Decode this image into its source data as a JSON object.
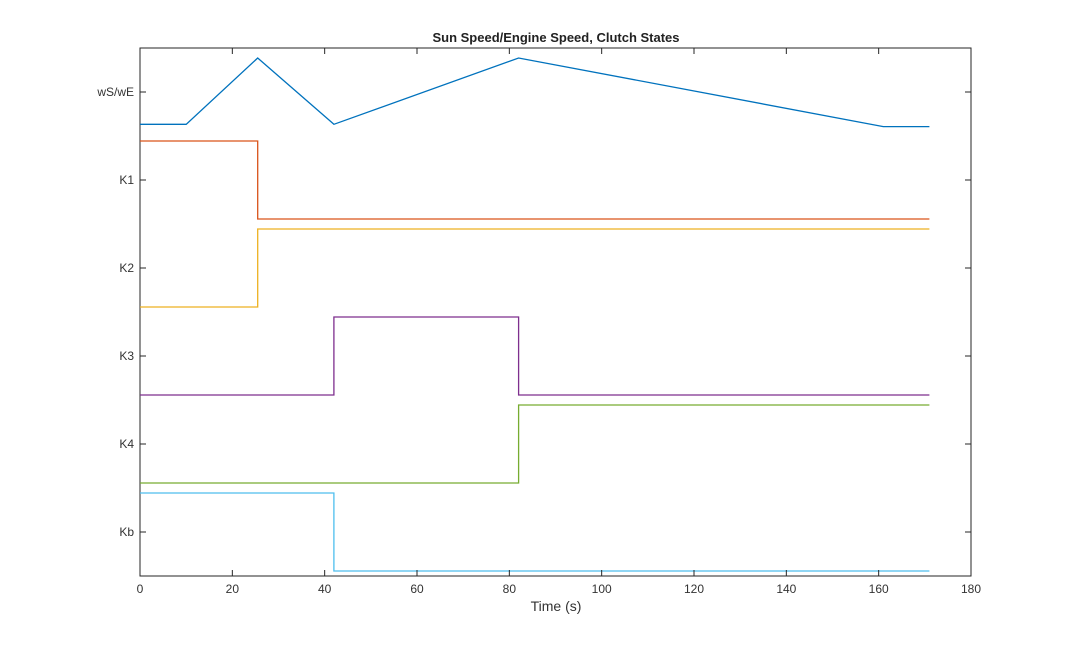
{
  "chart_data": {
    "type": "line",
    "title": "Sun Speed/Engine Speed, Clutch States",
    "xlabel": "Time (s)",
    "ylabel": "",
    "xlim": [
      0,
      180
    ],
    "xticks": [
      "0",
      "20",
      "40",
      "60",
      "80",
      "100",
      "120",
      "140",
      "160",
      "180"
    ],
    "ytick_labels": [
      "wS/wE",
      "K1",
      "K2",
      "K3",
      "K4",
      "Kb"
    ],
    "grid": false,
    "legend": "none",
    "series": [
      {
        "color": "#0072BD",
        "lane": "wS/wE",
        "x": [
          0,
          10,
          25.5,
          42,
          82,
          161,
          171
        ],
        "y": [
          0.15,
          0.15,
          1.0,
          0.15,
          1.0,
          0.12,
          0.12
        ]
      },
      {
        "color": "#D95319",
        "lane": "K1",
        "x": [
          0,
          25.5,
          25.5,
          171
        ],
        "y": [
          1,
          1,
          0,
          0
        ]
      },
      {
        "color": "#EDB120",
        "lane": "K2",
        "x": [
          0,
          25.5,
          25.5,
          171
        ],
        "y": [
          0,
          0,
          1,
          1
        ]
      },
      {
        "color": "#7E2F8E",
        "lane": "K3",
        "x": [
          0,
          42,
          42,
          82,
          82,
          171
        ],
        "y": [
          0,
          0,
          1,
          1,
          0,
          0
        ]
      },
      {
        "color": "#77AC30",
        "lane": "K4",
        "x": [
          0,
          82,
          82,
          171
        ],
        "y": [
          0,
          0,
          1,
          1
        ]
      },
      {
        "color": "#4DBEEE",
        "lane": "Kb",
        "x": [
          0,
          42,
          42,
          171
        ],
        "y": [
          1,
          1,
          0,
          0
        ]
      }
    ]
  }
}
